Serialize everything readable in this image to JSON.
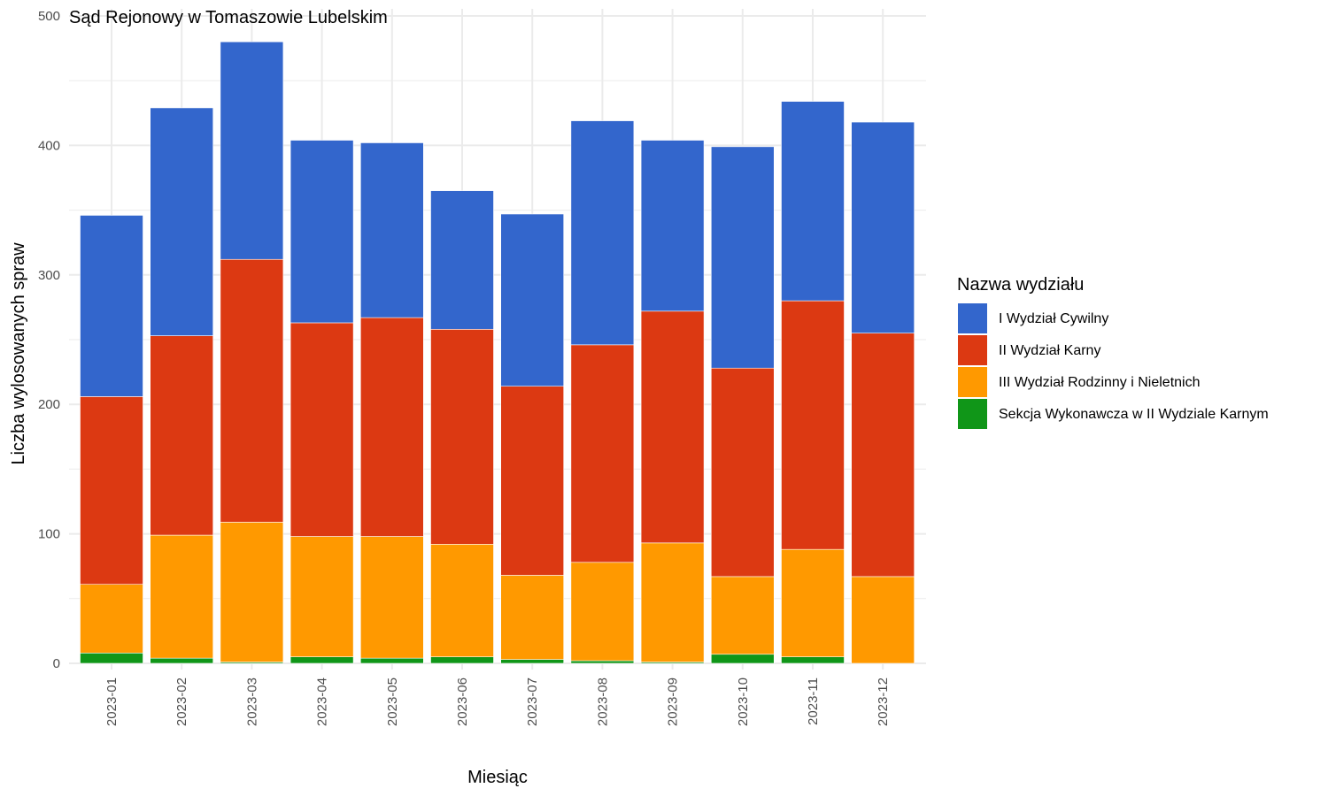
{
  "chart_data": {
    "type": "bar",
    "stacked": true,
    "title": "Sąd Rejonowy w Tomaszowie Lubelskim",
    "xlabel": "Miesiąc",
    "ylabel": "Liczba wylosowanych spraw",
    "ylim": [
      0,
      500
    ],
    "yticks": [
      0,
      100,
      200,
      300,
      400,
      500
    ],
    "grid": true,
    "legend_title": "Nazwa wydziału",
    "legend_position": "right",
    "categories": [
      "2023-01",
      "2023-02",
      "2023-03",
      "2023-04",
      "2023-05",
      "2023-06",
      "2023-07",
      "2023-08",
      "2023-09",
      "2023-10",
      "2023-11",
      "2023-12"
    ],
    "series": [
      {
        "name": "I Wydział Cywilny",
        "color": "#3366cc",
        "values": [
          140,
          176,
          168,
          141,
          135,
          107,
          133,
          173,
          132,
          171,
          154,
          163
        ]
      },
      {
        "name": "II Wydział Karny",
        "color": "#dc3912",
        "values": [
          145,
          154,
          203,
          165,
          169,
          166,
          146,
          168,
          179,
          161,
          192,
          188
        ]
      },
      {
        "name": "III Wydział Rodzinny i Nieletnich",
        "color": "#ff9900",
        "values": [
          53,
          95,
          108,
          93,
          94,
          87,
          65,
          76,
          92,
          60,
          83,
          67
        ]
      },
      {
        "name": "Sekcja Wykonawcza w II Wydziale Karnym",
        "color": "#109618",
        "values": [
          8,
          4,
          1,
          5,
          4,
          5,
          3,
          2,
          1,
          7,
          5,
          0
        ]
      }
    ]
  }
}
